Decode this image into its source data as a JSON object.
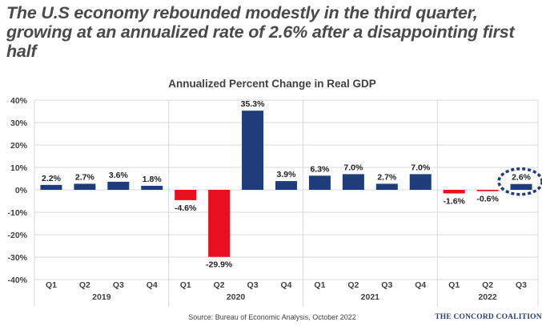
{
  "headline": "The U.S economy rebounded modestly in the third quarter, growing at an annualized rate of 2.6% after a disappointing first half",
  "source": "Source: Bureau of Economic Analysis, October 2022",
  "brand": "THE CONCORD COALITION",
  "colors": {
    "positive": "#1f3d7a",
    "negative": "#e8101e",
    "grid": "#d9d9d9"
  },
  "chart_data": {
    "type": "bar",
    "title": "Annualized Percent Change in Real GDP",
    "xlabel": "",
    "ylabel": "",
    "ylim": [
      -40,
      40
    ],
    "yticks": [
      40,
      30,
      20,
      10,
      0,
      -10,
      -20,
      -30,
      -40
    ],
    "ytick_labels": [
      "40%",
      "30%",
      "20%",
      "10%",
      "0%",
      "-10%",
      "-20%",
      "-30%",
      "-40%"
    ],
    "grid": true,
    "categories": [
      "Q1",
      "Q2",
      "Q3",
      "Q4",
      "Q1",
      "Q2",
      "Q3",
      "Q4",
      "Q1",
      "Q2",
      "Q3",
      "Q4",
      "Q1",
      "Q2",
      "Q3"
    ],
    "groups": [
      {
        "label": "2019",
        "count": 4
      },
      {
        "label": "2020",
        "count": 4
      },
      {
        "label": "2021",
        "count": 4
      },
      {
        "label": "2022",
        "count": 3
      }
    ],
    "values": [
      2.2,
      2.7,
      3.6,
      1.8,
      -4.6,
      -29.9,
      35.3,
      3.9,
      6.3,
      7.0,
      2.7,
      7.0,
      -1.6,
      -0.6,
      2.6
    ],
    "data_labels": [
      "2.2%",
      "2.7%",
      "3.6%",
      "1.8%",
      "-4.6%",
      "-29.9%",
      "35.3%",
      "3.9%",
      "6.3%",
      "7.0%",
      "2.7%",
      "7.0%",
      "-1.6%",
      "-0.6%",
      "2.6%"
    ],
    "highlighted_index": 14
  }
}
